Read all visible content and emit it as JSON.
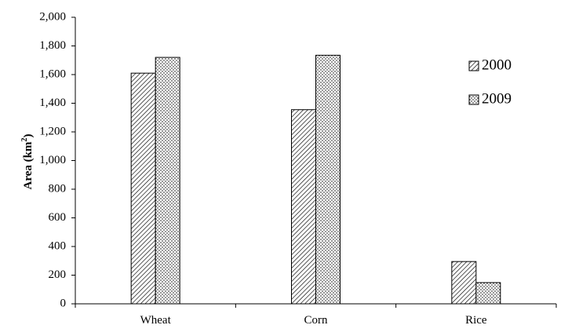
{
  "chart_data": {
    "type": "bar",
    "categories": [
      "Wheat",
      "Corn",
      "Rice"
    ],
    "series": [
      {
        "name": "2000",
        "values": [
          1610,
          1355,
          295
        ],
        "pattern": "diagonal-hatch"
      },
      {
        "name": "2009",
        "values": [
          1720,
          1735,
          148
        ],
        "pattern": "dots"
      }
    ],
    "ylabel": "Area (km",
    "ylabel_superscript": "2",
    "ylabel_suffix": ")",
    "xlabel": "",
    "ylim": [
      0,
      2000
    ],
    "ytick_values": [
      0,
      200,
      400,
      600,
      800,
      1000,
      1200,
      1400,
      1600,
      1800,
      2000
    ],
    "ytick_labels": [
      "0",
      "200",
      "400",
      "600",
      "800",
      "1,000",
      "1,200",
      "1,400",
      "1,600",
      "1,800",
      "2,000"
    ],
    "grid": false,
    "legend_position": "top-right",
    "colors": {
      "stroke": "#000000",
      "background": "#ffffff"
    }
  }
}
